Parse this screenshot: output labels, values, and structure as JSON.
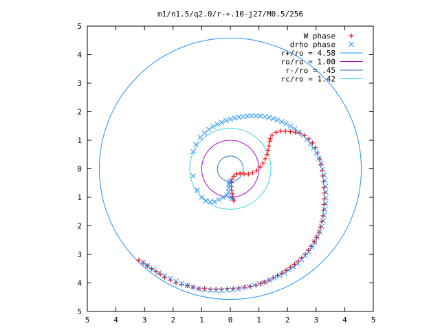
{
  "chart_data": {
    "type": "scatter",
    "title": "m1/n1.5/q2.0/r-+.10-j27/M0.5/256",
    "xlim": [
      -5,
      5
    ],
    "ylim": [
      -5,
      5
    ],
    "xticks": [
      {
        "value": -5,
        "label": "5"
      },
      {
        "value": -4,
        "label": "4"
      },
      {
        "value": -3,
        "label": "3"
      },
      {
        "value": -2,
        "label": "2"
      },
      {
        "value": -1,
        "label": "1"
      },
      {
        "value": 0,
        "label": "0"
      },
      {
        "value": 1,
        "label": "1"
      },
      {
        "value": 2,
        "label": "2"
      },
      {
        "value": 3,
        "label": "3"
      },
      {
        "value": 4,
        "label": "4"
      },
      {
        "value": 5,
        "label": "5"
      }
    ],
    "yticks": [
      {
        "value": 5,
        "label": "5"
      },
      {
        "value": 4,
        "label": "4"
      },
      {
        "value": 3,
        "label": "3"
      },
      {
        "value": 2,
        "label": "2"
      },
      {
        "value": 1,
        "label": "1"
      },
      {
        "value": 0,
        "label": "0"
      },
      {
        "value": -1,
        "label": "1"
      },
      {
        "value": -2,
        "label": "2"
      },
      {
        "value": -3,
        "label": "3"
      },
      {
        "value": -4,
        "label": "4"
      },
      {
        "value": -5,
        "label": "5"
      }
    ],
    "grid": false,
    "legend_position": "top-right",
    "series": [
      {
        "name": "W phase",
        "kind": "points",
        "marker": "plus",
        "color": "#ff0000",
        "points": [
          [
            -3.2,
            -3.2
          ],
          [
            -3.05,
            -3.3
          ],
          [
            -2.9,
            -3.4
          ],
          [
            -2.75,
            -3.5
          ],
          [
            -2.6,
            -3.6
          ],
          [
            -2.45,
            -3.7
          ],
          [
            -2.3,
            -3.8
          ],
          [
            -2.1,
            -3.9
          ],
          [
            -1.9,
            -4.0
          ],
          [
            -1.7,
            -4.05
          ],
          [
            -1.5,
            -4.1
          ],
          [
            -1.3,
            -4.15
          ],
          [
            -1.1,
            -4.2
          ],
          [
            -0.9,
            -4.2
          ],
          [
            -0.7,
            -4.22
          ],
          [
            -0.5,
            -4.22
          ],
          [
            -0.3,
            -4.22
          ],
          [
            -0.1,
            -4.2
          ],
          [
            0.1,
            -4.2
          ],
          [
            0.3,
            -4.18
          ],
          [
            0.5,
            -4.15
          ],
          [
            0.7,
            -4.12
          ],
          [
            0.9,
            -4.08
          ],
          [
            1.05,
            -4.02
          ],
          [
            1.2,
            -3.97
          ],
          [
            1.35,
            -3.9
          ],
          [
            1.5,
            -3.82
          ],
          [
            1.65,
            -3.74
          ],
          [
            1.8,
            -3.66
          ],
          [
            1.95,
            -3.56
          ],
          [
            2.1,
            -3.46
          ],
          [
            2.25,
            -3.35
          ],
          [
            2.38,
            -3.24
          ],
          [
            2.5,
            -3.12
          ],
          [
            2.62,
            -3.0
          ],
          [
            2.73,
            -2.86
          ],
          [
            2.84,
            -2.72
          ],
          [
            2.94,
            -2.56
          ],
          [
            3.02,
            -2.4
          ],
          [
            3.1,
            -2.22
          ],
          [
            3.16,
            -2.04
          ],
          [
            3.2,
            -1.85
          ],
          [
            3.24,
            -1.65
          ],
          [
            3.26,
            -1.45
          ],
          [
            3.28,
            -1.25
          ],
          [
            3.29,
            -1.05
          ],
          [
            3.29,
            -0.85
          ],
          [
            3.28,
            -0.65
          ],
          [
            3.26,
            -0.45
          ],
          [
            3.24,
            -0.25
          ],
          [
            3.21,
            -0.05
          ],
          [
            3.17,
            0.15
          ],
          [
            3.12,
            0.35
          ],
          [
            3.05,
            0.55
          ],
          [
            2.97,
            0.74
          ],
          [
            2.87,
            0.91
          ],
          [
            2.75,
            1.05
          ],
          [
            2.6,
            1.16
          ],
          [
            2.44,
            1.23
          ],
          [
            2.27,
            1.28
          ],
          [
            2.1,
            1.3
          ],
          [
            1.93,
            1.32
          ],
          [
            1.76,
            1.32
          ],
          [
            1.6,
            1.28
          ],
          [
            1.46,
            1.18
          ],
          [
            1.4,
            1.05
          ],
          [
            1.38,
            0.95
          ],
          [
            1.35,
            0.8
          ],
          [
            1.32,
            0.65
          ],
          [
            1.28,
            0.5
          ],
          [
            1.22,
            0.35
          ],
          [
            1.14,
            0.2
          ],
          [
            1.04,
            0.06
          ],
          [
            0.92,
            -0.06
          ],
          [
            0.78,
            -0.14
          ],
          [
            0.63,
            -0.18
          ],
          [
            0.48,
            -0.18
          ],
          [
            0.34,
            -0.16
          ],
          [
            0.22,
            -0.18
          ],
          [
            0.12,
            -0.26
          ],
          [
            0.06,
            -0.36
          ],
          [
            0.04,
            -0.48
          ],
          [
            0.04,
            -0.62
          ],
          [
            0.05,
            -0.76
          ],
          [
            0.07,
            -0.88
          ],
          [
            0.09,
            -0.98
          ],
          [
            0.11,
            -1.06
          ],
          [
            0.12,
            -1.12
          ]
        ]
      },
      {
        "name": "drho phase",
        "kind": "points",
        "marker": "cross",
        "color": "#1e90ff",
        "points": [
          [
            -1.3,
            0.6
          ],
          [
            -1.2,
            0.85
          ],
          [
            -1.05,
            1.1
          ],
          [
            -0.9,
            1.25
          ],
          [
            -0.75,
            1.38
          ],
          [
            -0.6,
            1.48
          ],
          [
            -0.45,
            1.56
          ],
          [
            -0.3,
            1.63
          ],
          [
            -0.15,
            1.69
          ],
          [
            0.0,
            1.74
          ],
          [
            0.15,
            1.78
          ],
          [
            0.3,
            1.81
          ],
          [
            0.45,
            1.83
          ],
          [
            0.6,
            1.85
          ],
          [
            0.75,
            1.86
          ],
          [
            0.9,
            1.86
          ],
          [
            1.05,
            1.85
          ],
          [
            1.2,
            1.83
          ],
          [
            1.35,
            1.8
          ],
          [
            1.5,
            1.76
          ],
          [
            1.65,
            1.71
          ],
          [
            1.8,
            1.65
          ],
          [
            1.95,
            1.58
          ],
          [
            2.1,
            1.5
          ],
          [
            2.25,
            1.4
          ],
          [
            2.4,
            1.29
          ],
          [
            2.54,
            1.17
          ],
          [
            2.68,
            1.03
          ],
          [
            2.8,
            0.88
          ],
          [
            2.91,
            0.72
          ],
          [
            3.01,
            0.55
          ],
          [
            3.1,
            0.37
          ],
          [
            3.17,
            0.18
          ],
          [
            3.23,
            -0.02
          ],
          [
            3.28,
            -0.22
          ],
          [
            3.31,
            -0.42
          ],
          [
            3.33,
            -0.62
          ],
          [
            3.34,
            -0.82
          ],
          [
            3.34,
            -1.02
          ],
          [
            3.33,
            -1.22
          ],
          [
            3.31,
            -1.42
          ],
          [
            3.28,
            -1.62
          ],
          [
            3.24,
            -1.82
          ],
          [
            3.19,
            -2.02
          ],
          [
            3.12,
            -2.21
          ],
          [
            3.04,
            -2.39
          ],
          [
            2.95,
            -2.57
          ],
          [
            2.85,
            -2.74
          ],
          [
            2.74,
            -2.9
          ],
          [
            2.62,
            -3.05
          ],
          [
            2.49,
            -3.19
          ],
          [
            2.35,
            -3.32
          ],
          [
            2.2,
            -3.44
          ],
          [
            2.05,
            -3.55
          ],
          [
            1.89,
            -3.65
          ],
          [
            1.72,
            -3.74
          ],
          [
            1.55,
            -3.82
          ],
          [
            1.38,
            -3.9
          ],
          [
            1.2,
            -3.97
          ],
          [
            1.02,
            -4.03
          ],
          [
            0.84,
            -4.08
          ],
          [
            0.65,
            -4.13
          ],
          [
            0.46,
            -4.17
          ],
          [
            0.27,
            -4.21
          ],
          [
            0.08,
            -4.24
          ],
          [
            -0.11,
            -4.26
          ],
          [
            -0.3,
            -4.27
          ],
          [
            -0.5,
            -4.27
          ],
          [
            -0.7,
            -4.26
          ],
          [
            -0.9,
            -4.24
          ],
          [
            -1.1,
            -4.2
          ],
          [
            -1.3,
            -4.15
          ],
          [
            -1.5,
            -4.09
          ],
          [
            -1.7,
            -4.02
          ],
          [
            -1.9,
            -3.94
          ],
          [
            -2.1,
            -3.85
          ],
          [
            -2.3,
            -3.75
          ],
          [
            -2.5,
            -3.64
          ],
          [
            -2.7,
            -3.52
          ],
          [
            -2.9,
            -3.4
          ],
          [
            -3.05,
            -3.28
          ],
          [
            -1.3,
            -0.25
          ],
          [
            -1.15,
            -0.75
          ],
          [
            -1.0,
            -1.0
          ],
          [
            -0.85,
            -1.12
          ],
          [
            -0.7,
            -1.16
          ],
          [
            -0.55,
            -1.15
          ],
          [
            -0.4,
            -1.08
          ],
          [
            -0.25,
            -1.0
          ],
          [
            -0.12,
            -0.92
          ],
          [
            -0.05,
            -0.8
          ],
          [
            -0.05,
            -0.68
          ],
          [
            -0.04,
            -0.56
          ],
          [
            -0.03,
            -0.48
          ],
          [
            0.0,
            -0.42
          ],
          [
            0.05,
            -1.05
          ],
          [
            0.02,
            -0.98
          ]
        ]
      },
      {
        "name": "r+/ro = 4.58",
        "kind": "circle",
        "radius": 4.58,
        "color": "#1e90ff"
      },
      {
        "name": "ro/ro = 1.00",
        "kind": "circle",
        "radius": 1.0,
        "color": "#b000d0"
      },
      {
        "name": "r-/ro = .45",
        "kind": "circle",
        "radius": 0.45,
        "color": "#1e6fd0"
      },
      {
        "name": "rc/ro = 1.42",
        "kind": "circle",
        "radius": 1.42,
        "color": "#3ad4d8"
      }
    ]
  }
}
